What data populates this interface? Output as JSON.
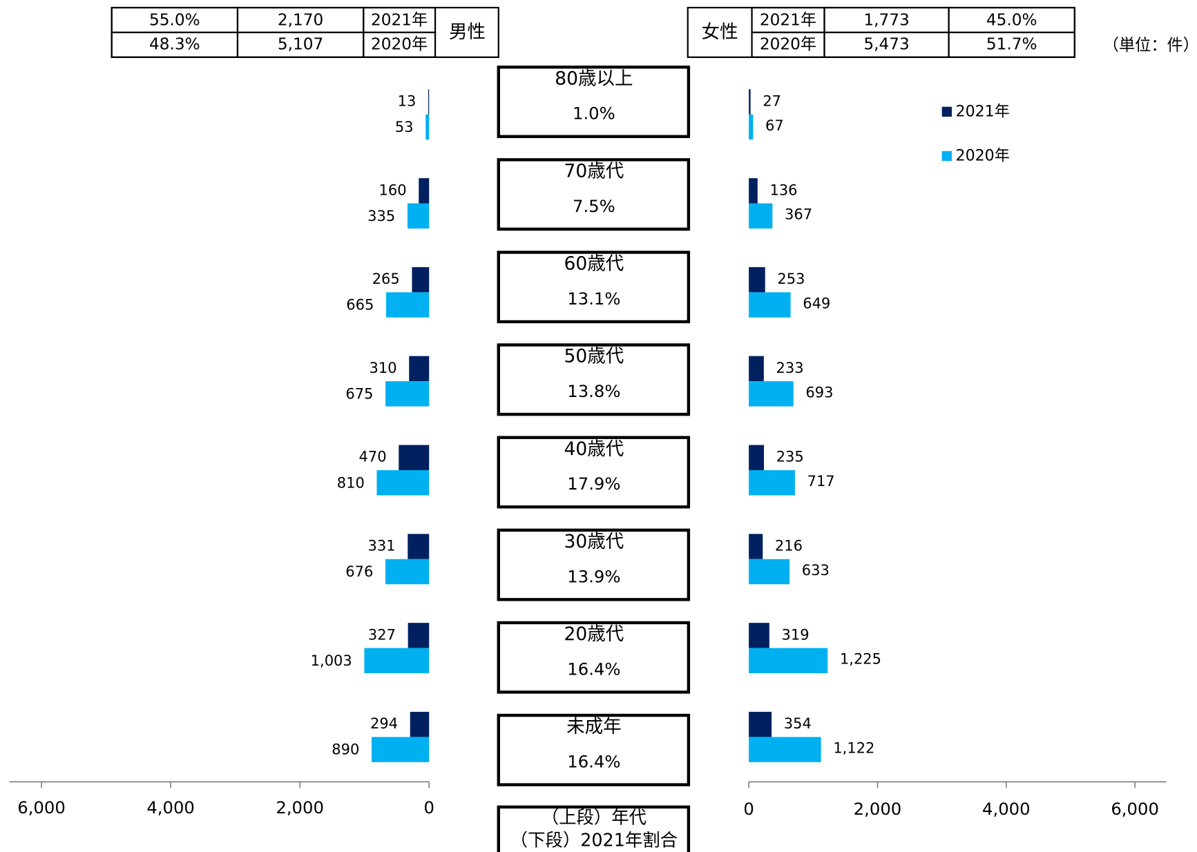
{
  "chart_data": {
    "type": "bar",
    "orientation": "horizontal",
    "mirrored": true,
    "categories": [
      "80歳以上",
      "70歳代",
      "60歳代",
      "50歳代",
      "40歳代",
      "30歳代",
      "20歳代",
      "未成年"
    ],
    "category_notes": [
      "1.0%",
      "7.5%",
      "13.1%",
      "13.8%",
      "17.9%",
      "13.9%",
      "16.4%",
      "16.4%"
    ],
    "series": [
      {
        "name": "2021年",
        "color": "#002060",
        "values": {
          "left": [
            13,
            160,
            265,
            310,
            470,
            331,
            327,
            294
          ],
          "right": [
            27,
            136,
            253,
            233,
            235,
            216,
            319,
            354
          ]
        },
        "value_labels": {
          "left": [
            "13",
            "160",
            "265",
            "310",
            "470",
            "331",
            "327",
            "294"
          ],
          "right": [
            "27",
            "136",
            "253",
            "233",
            "235",
            "216",
            "319",
            "354"
          ]
        }
      },
      {
        "name": "2020年",
        "color": "#00b0f0",
        "values": {
          "left": [
            53,
            335,
            665,
            675,
            810,
            676,
            1003,
            890
          ],
          "right": [
            67,
            367,
            649,
            693,
            717,
            633,
            1225,
            1122
          ]
        },
        "value_labels": {
          "left": [
            "53",
            "335",
            "665",
            "675",
            "810",
            "676",
            "1,003",
            "890"
          ],
          "right": [
            "67",
            "367",
            "649",
            "693",
            "717",
            "633",
            "1,225",
            "1,122"
          ]
        }
      }
    ],
    "xlim": [
      0,
      6000
    ],
    "xticks": [
      0,
      {
        "value": 2000,
        "label": "2,000"
      },
      {
        "value": 4000,
        "label": "4,000"
      },
      {
        "value": 6000,
        "label": "6,000"
      }
    ]
  },
  "male_table": {
    "label": "男性",
    "rows": [
      [
        "55.0%",
        "2,170",
        "2021年"
      ],
      [
        "48.3%",
        "5,107",
        "2020年"
      ]
    ]
  },
  "female_table": {
    "label": "女性",
    "rows": [
      [
        "2021年",
        "1,773",
        "45.0%"
      ],
      [
        "2020年",
        "5,473",
        "51.7%"
      ]
    ]
  },
  "unit_label": "（単位：件）",
  "key_box": [
    "（上段）年代",
    "（下段）2021年割合"
  ]
}
